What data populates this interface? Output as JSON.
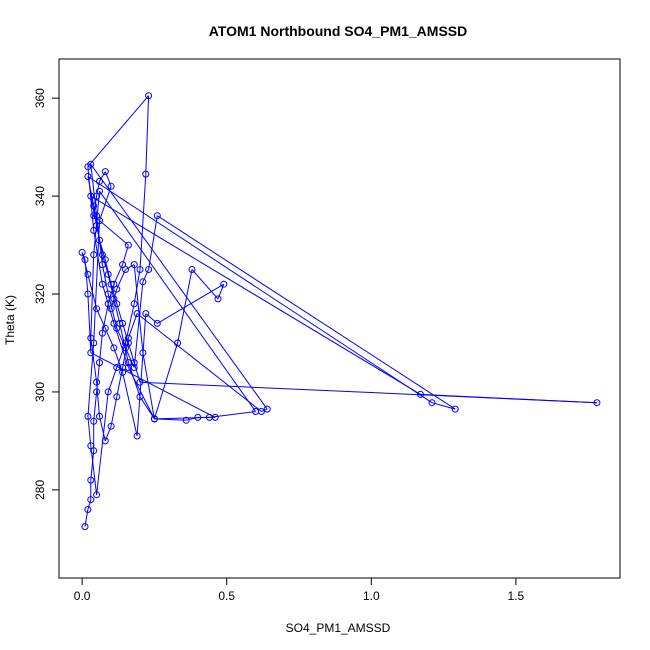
{
  "chart_data": {
    "type": "line",
    "title": "ATOM1 Northbound SO4_PM1_AMSSD",
    "xlabel": "SO4_PM1_AMSSD",
    "ylabel": "Theta (K)",
    "xlim": [
      -0.08,
      1.86
    ],
    "ylim": [
      262,
      368
    ],
    "x_ticks": [
      0.0,
      0.5,
      1.0,
      1.5
    ],
    "x_tick_labels": [
      "0.0",
      "0.5",
      "1.0",
      "1.5"
    ],
    "y_ticks": [
      280,
      300,
      320,
      340,
      360
    ],
    "y_tick_labels": [
      "280",
      "300",
      "320",
      "340",
      "360"
    ],
    "grid": false,
    "legend": "none",
    "markers": "open-circle",
    "series": [
      {
        "color": "#0000ff",
        "x": [
          0.01,
          0.02,
          0.03,
          0.03,
          0.04,
          0.04,
          0.05,
          0.06,
          0.07,
          0.09,
          0.11,
          0.14,
          0.16,
          0.04,
          0.05,
          0.06,
          0.08,
          0.1,
          0.06,
          0.04,
          0.02,
          0.03,
          0.05,
          0.09,
          0.12,
          0.15,
          0.18,
          0.2,
          0.22,
          0.23,
          0.02,
          0.04,
          0.07,
          0.11,
          0.16,
          0.25,
          0.44,
          0.6,
          0.06,
          0.04,
          0.03,
          0.05,
          0.06,
          0.08,
          0.1,
          0.12,
          0.14,
          0.16,
          0.19,
          0.62,
          0.64,
          0.03,
          0.05,
          0.07,
          0.09,
          0.12,
          0.15,
          0.18,
          0.21,
          0.23,
          0.26,
          1.29,
          1.21,
          0.02,
          0.04,
          0.06,
          0.08,
          0.1,
          0.12,
          0.14,
          0.16,
          0.18,
          0.2,
          1.78,
          1.17,
          0.03,
          0.05,
          0.07,
          0.09,
          0.11,
          0.13,
          0.16,
          0.2,
          0.25,
          0.36,
          0.4,
          0.46,
          0.03,
          0.02,
          0.01,
          0.0,
          0.02,
          0.05,
          0.08,
          0.11,
          0.14,
          0.19,
          0.22,
          0.26,
          0.49,
          0.47,
          0.38,
          0.33,
          0.25,
          0.21,
          0.18,
          0.15,
          0.12,
          0.1
        ],
        "y": [
          272.5,
          276.0,
          278.0,
          282.0,
          288.0,
          294.0,
          300.0,
          306.0,
          312.0,
          318.0,
          322.0,
          326.0,
          330.0,
          336.0,
          340.0,
          343.0,
          345.0,
          342.0,
          335.0,
          310.0,
          295.0,
          289.0,
          279.0,
          300.0,
          305.0,
          310.0,
          318.0,
          325.0,
          344.5,
          360.5,
          346.0,
          333.0,
          322.0,
          314.0,
          305.0,
          294.5,
          294.8,
          296.0,
          341.0,
          328.0,
          311.0,
          302.0,
          295.0,
          290.0,
          293.0,
          299.0,
          305.0,
          311.0,
          316.0,
          296.0,
          296.5,
          346.5,
          336.0,
          326.0,
          320.0,
          313.0,
          309.0,
          305.0,
          322.5,
          325.0,
          336.0,
          296.5,
          297.8,
          344.0,
          338.0,
          331.0,
          327.0,
          322.0,
          318.0,
          314.0,
          310.0,
          306.0,
          302.0,
          297.8,
          299.5,
          340.0,
          334.0,
          328.0,
          324.0,
          319.0,
          314.0,
          306.0,
          299.0,
          294.5,
          294.2,
          294.8,
          294.8,
          308.0,
          320.0,
          327.0,
          328.5,
          324.0,
          317.0,
          313.0,
          309.0,
          304.0,
          291.0,
          316.0,
          314.0,
          322.0,
          319.0,
          325.0,
          310.0,
          294.5,
          308.0,
          326.0,
          325.0,
          321.0,
          317.0
        ]
      }
    ]
  }
}
